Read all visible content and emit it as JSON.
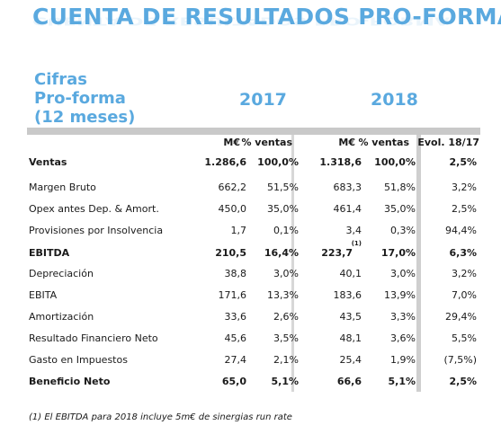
{
  "title": "CUENTA DE RESULTADOS PRO-FORMA",
  "left_heading": [
    "Cifras",
    "Pro-forma",
    "(12 meses)"
  ],
  "years": [
    "2017",
    "2018"
  ],
  "subheaders": {
    "m1": "M€",
    "p1": "% ventas",
    "m2": "M€",
    "p2": "% ventas",
    "evol": "Evol. 18/17"
  },
  "rows": [
    {
      "label": "Ventas",
      "v2017": "1.286,6",
      "p2017": "100,0%",
      "v2018": "1.318,6",
      "p2018": "100,0%",
      "evol": "2,5%",
      "bold": true
    },
    {
      "label": "Margen Bruto",
      "v2017": "662,2",
      "p2017": "51,5%",
      "v2018": "683,3",
      "p2018": "51,8%",
      "evol": "3,2%"
    },
    {
      "label": "Opex antes Dep. & Amort.",
      "v2017": "450,0",
      "p2017": "35,0%",
      "v2018": "461,4",
      "p2018": "35,0%",
      "evol": "2,5%"
    },
    {
      "label": "Provisiones por Insolvencia",
      "v2017": "1,7",
      "p2017": "0,1%",
      "v2018": "3,4",
      "p2018": "0,3%",
      "evol": "94,4%"
    },
    {
      "label": "EBITDA",
      "v2017": "210,5",
      "p2017": "16,4%",
      "v2018": "223,7",
      "v2018_sup": "(1)",
      "p2018": "17,0%",
      "evol": "6,3%",
      "bold": true
    },
    {
      "label": "Depreciación",
      "v2017": "38,8",
      "p2017": "3,0%",
      "v2018": "40,1",
      "p2018": "3,0%",
      "evol": "3,2%"
    },
    {
      "label": "EBITA",
      "v2017": "171,6",
      "p2017": "13,3%",
      "v2018": "183,6",
      "p2018": "13,9%",
      "evol": "7,0%"
    },
    {
      "label": "Amortización",
      "v2017": "33,6",
      "p2017": "2,6%",
      "v2018": "43,5",
      "p2018": "3,3%",
      "evol": "29,4%"
    },
    {
      "label": "Resultado Financiero Neto",
      "v2017": "45,6",
      "p2017": "3,5%",
      "v2018": "48,1",
      "p2018": "3,6%",
      "evol": "5,5%"
    },
    {
      "label": "Gasto en Impuestos",
      "v2017": "27,4",
      "p2017": "2,1%",
      "v2018": "25,4",
      "p2018": "1,9%",
      "evol": "(7,5%)"
    },
    {
      "label": "Beneficio Neto",
      "v2017": "65,0",
      "p2017": "5,1%",
      "v2018": "66,6",
      "p2018": "5,1%",
      "evol": "2,5%",
      "bold": true
    }
  ],
  "footnote": "(1) El EBITDA para 2018 incluye 5m€ de sinergias run rate"
}
